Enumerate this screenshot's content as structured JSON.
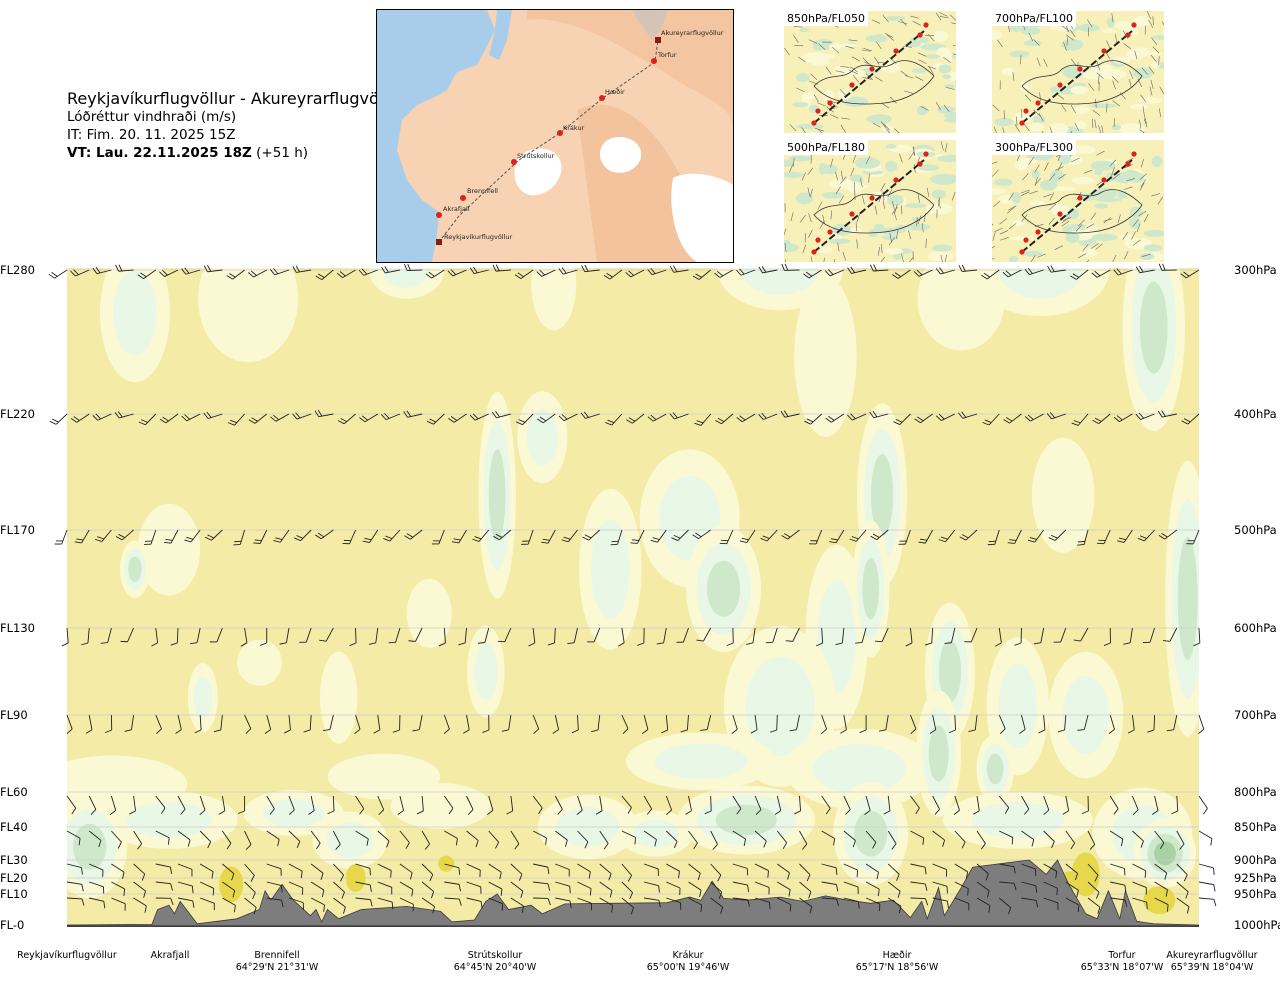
{
  "header": {
    "route_title": "Reykjavíkurflugvöllur - Akureyrarflugvöllur",
    "subtitle": "Lóðréttur vindhraði (m/s)",
    "issue_time": "IT: Fim. 20. 11. 2025 15Z",
    "valid_prefix": "VT: Lau. 22.11.2025 18Z",
    "valid_suffix": "(+51 h)"
  },
  "route_map": {
    "points": [
      {
        "name": "Akureyrarflugvöllur",
        "kind": "airport"
      },
      {
        "name": "Torfur",
        "kind": "waypoint"
      },
      {
        "name": "Hæðir",
        "kind": "waypoint"
      },
      {
        "name": "Krákur",
        "kind": "waypoint"
      },
      {
        "name": "Strútskollur",
        "kind": "waypoint"
      },
      {
        "name": "Brennifell",
        "kind": "waypoint"
      },
      {
        "name": "Akrafjall",
        "kind": "waypoint"
      },
      {
        "name": "Reykjavíkurflugvöllur",
        "kind": "airport"
      }
    ],
    "colors": {
      "land": "#f3c8a4",
      "sea": "#a8cdea",
      "ice": "#ffffff",
      "route": "#555555",
      "waypoint": "#e0201a",
      "airport": "#8a1a1a"
    }
  },
  "level_maps": [
    {
      "label": "850hPa/FL050"
    },
    {
      "label": "700hPa/FL100"
    },
    {
      "label": "500hPa/FL180"
    },
    {
      "label": "300hPa/FL300"
    }
  ],
  "chart_data": {
    "type": "heatmap",
    "title": "Lóðréttur vindhraði (m/s)",
    "colors": {
      "yellow": "#f3eba6",
      "cream": "#fbf8d4",
      "mint": "#e9f7e6",
      "green": "#cfe8cc",
      "dark_green": "#a8d2a4",
      "terrain": "#7d7d7d",
      "terrain_yellow": "#e6d84a",
      "grid": "#cccccc",
      "barb": "#222222"
    },
    "y_left_ticks": [
      {
        "label": "FL280",
        "pressure": 300
      },
      {
        "label": "FL220",
        "pressure": 400
      },
      {
        "label": "FL170",
        "pressure": 500
      },
      {
        "label": "FL130",
        "pressure": 600
      },
      {
        "label": "FL90",
        "pressure": 700
      },
      {
        "label": "FL60",
        "pressure": 800
      },
      {
        "label": "FL40",
        "pressure": 850
      },
      {
        "label": "FL30",
        "pressure": 900
      },
      {
        "label": "FL20",
        "pressure": 925
      },
      {
        "label": "FL10",
        "pressure": 950
      },
      {
        "label": "FL-0",
        "pressure": 1000
      }
    ],
    "y_right_ticks": [
      "300hPa",
      "400hPa",
      "500hPa",
      "600hPa",
      "700hPa",
      "800hPa",
      "850hPa",
      "900hPa",
      "925hPa",
      "950hPa",
      "1000hPa"
    ],
    "x_points": [
      {
        "name": "Reykjavíkurflugvöllur",
        "coord": "",
        "pos": 0.0
      },
      {
        "name": "Akrafjall",
        "coord": "",
        "pos": 0.09
      },
      {
        "name": "Brennifell",
        "coord": "64°29'N 21°31'W",
        "pos": 0.19
      },
      {
        "name": "Strútskollur",
        "coord": "64°45'N 20°40'W",
        "pos": 0.38
      },
      {
        "name": "Krákur",
        "coord": "65°00'N 19°46'W",
        "pos": 0.57
      },
      {
        "name": "Hæðir",
        "coord": "65°17'N 18°56'W",
        "pos": 0.76
      },
      {
        "name": "Torfur",
        "coord": "65°33'N 18°07'W",
        "pos": 0.93
      },
      {
        "name": "Akureyrarflugvöllur",
        "coord": "65°39'N 18°04'W",
        "pos": 1.0
      }
    ],
    "barb_levels": [
      300,
      400,
      500,
      600,
      700,
      800,
      850,
      900,
      925,
      950
    ],
    "terrain_profile_hpa": [
      [
        0.0,
        1000
      ],
      [
        0.075,
        999
      ],
      [
        0.08,
        975
      ],
      [
        0.09,
        968
      ],
      [
        0.095,
        982
      ],
      [
        0.1,
        962
      ],
      [
        0.115,
        998
      ],
      [
        0.15,
        990
      ],
      [
        0.17,
        975
      ],
      [
        0.175,
        945
      ],
      [
        0.18,
        960
      ],
      [
        0.19,
        935
      ],
      [
        0.2,
        960
      ],
      [
        0.215,
        985
      ],
      [
        0.22,
        975
      ],
      [
        0.225,
        995
      ],
      [
        0.23,
        975
      ],
      [
        0.24,
        990
      ],
      [
        0.26,
        975
      ],
      [
        0.3,
        970
      ],
      [
        0.33,
        978
      ],
      [
        0.34,
        995
      ],
      [
        0.36,
        992
      ],
      [
        0.37,
        962
      ],
      [
        0.38,
        950
      ],
      [
        0.39,
        975
      ],
      [
        0.41,
        968
      ],
      [
        0.42,
        982
      ],
      [
        0.44,
        966
      ],
      [
        0.48,
        965
      ],
      [
        0.53,
        964
      ],
      [
        0.55,
        955
      ],
      [
        0.56,
        960
      ],
      [
        0.57,
        930
      ],
      [
        0.58,
        957
      ],
      [
        0.6,
        960
      ],
      [
        0.63,
        955
      ],
      [
        0.65,
        962
      ],
      [
        0.67,
        953
      ],
      [
        0.69,
        960
      ],
      [
        0.71,
        965
      ],
      [
        0.73,
        960
      ],
      [
        0.745,
        988
      ],
      [
        0.755,
        962
      ],
      [
        0.76,
        990
      ],
      [
        0.77,
        940
      ],
      [
        0.775,
        985
      ],
      [
        0.79,
        940
      ],
      [
        0.8,
        910
      ],
      [
        0.85,
        900
      ],
      [
        0.865,
        920
      ],
      [
        0.875,
        900
      ],
      [
        0.885,
        935
      ],
      [
        0.9,
        982
      ],
      [
        0.91,
        990
      ],
      [
        0.92,
        945
      ],
      [
        0.93,
        990
      ],
      [
        0.935,
        945
      ],
      [
        0.945,
        994
      ],
      [
        0.96,
        998
      ],
      [
        1.0,
        1000
      ]
    ]
  }
}
